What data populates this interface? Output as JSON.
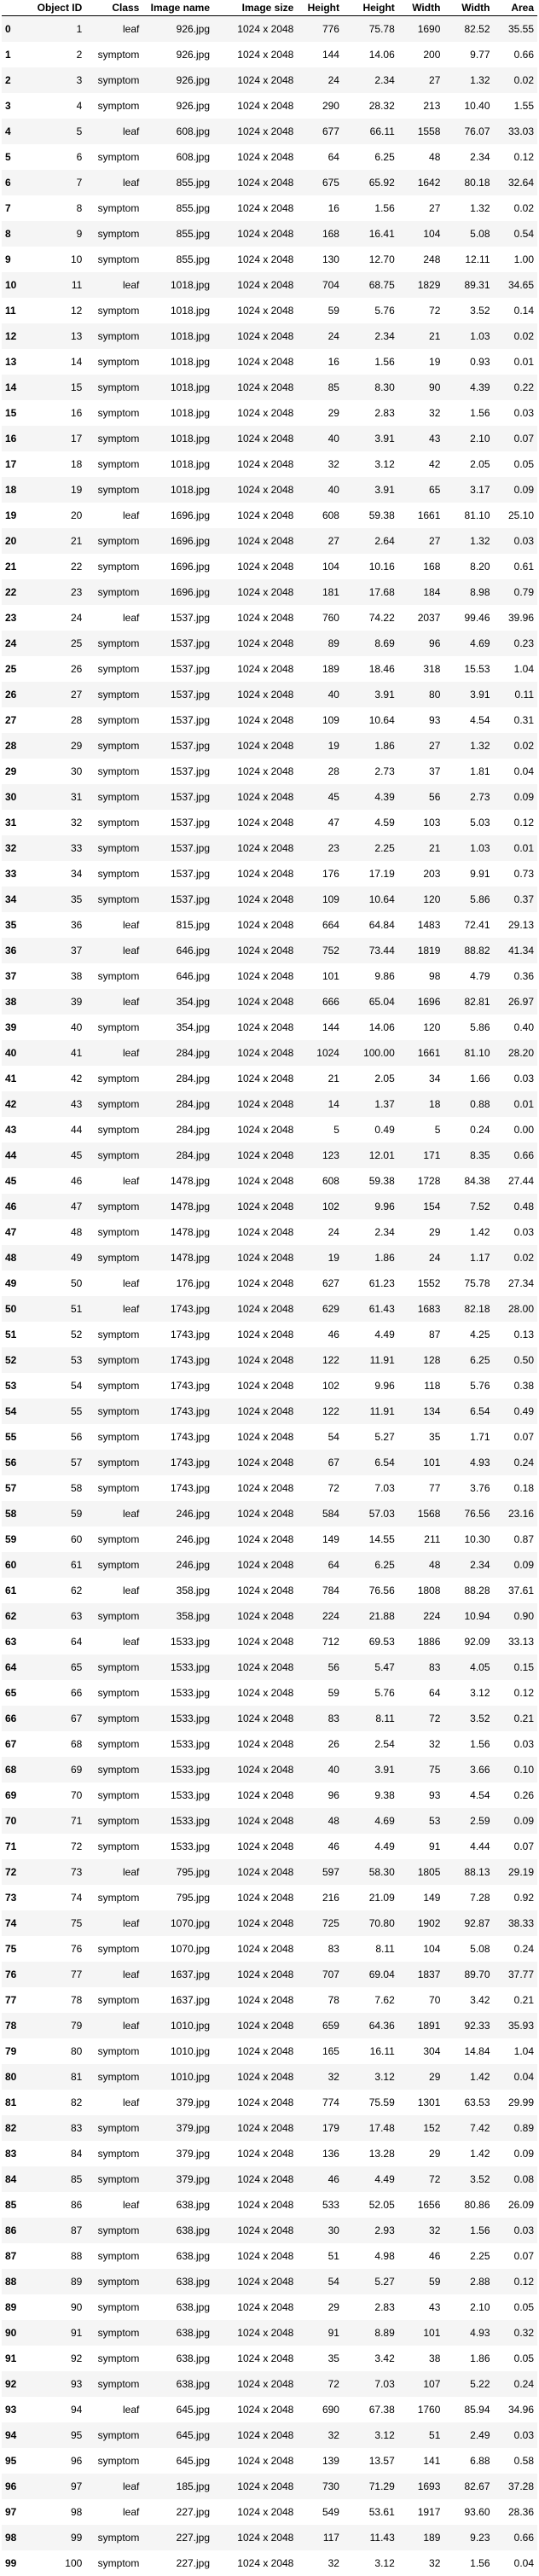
{
  "columns": [
    "Object ID",
    "Class",
    "Image name",
    "Image size",
    "Height",
    "Width",
    "Area"
  ],
  "raw_columns": [
    "Object ID",
    "Class",
    "Image name",
    "Image size",
    "Height",
    "Height",
    "Width",
    "Width",
    "Area"
  ],
  "header": {
    "index": "",
    "object_id": "Object ID",
    "class": "Class",
    "image_name": "Image name",
    "image_size": "Image size",
    "height_px": "Height",
    "height_pct": "Height",
    "width_px": "Width",
    "width_pct": "Width",
    "area": "Area"
  },
  "rows": [
    [
      "0",
      "1",
      "leaf",
      "926.jpg",
      "1024 x 2048",
      "776",
      "75.78",
      "1690",
      "82.52",
      "35.55"
    ],
    [
      "1",
      "2",
      "symptom",
      "926.jpg",
      "1024 x 2048",
      "144",
      "14.06",
      "200",
      "9.77",
      "0.66"
    ],
    [
      "2",
      "3",
      "symptom",
      "926.jpg",
      "1024 x 2048",
      "24",
      "2.34",
      "27",
      "1.32",
      "0.02"
    ],
    [
      "3",
      "4",
      "symptom",
      "926.jpg",
      "1024 x 2048",
      "290",
      "28.32",
      "213",
      "10.40",
      "1.55"
    ],
    [
      "4",
      "5",
      "leaf",
      "608.jpg",
      "1024 x 2048",
      "677",
      "66.11",
      "1558",
      "76.07",
      "33.03"
    ],
    [
      "5",
      "6",
      "symptom",
      "608.jpg",
      "1024 x 2048",
      "64",
      "6.25",
      "48",
      "2.34",
      "0.12"
    ],
    [
      "6",
      "7",
      "leaf",
      "855.jpg",
      "1024 x 2048",
      "675",
      "65.92",
      "1642",
      "80.18",
      "32.64"
    ],
    [
      "7",
      "8",
      "symptom",
      "855.jpg",
      "1024 x 2048",
      "16",
      "1.56",
      "27",
      "1.32",
      "0.02"
    ],
    [
      "8",
      "9",
      "symptom",
      "855.jpg",
      "1024 x 2048",
      "168",
      "16.41",
      "104",
      "5.08",
      "0.54"
    ],
    [
      "9",
      "10",
      "symptom",
      "855.jpg",
      "1024 x 2048",
      "130",
      "12.70",
      "248",
      "12.11",
      "1.00"
    ],
    [
      "10",
      "11",
      "leaf",
      "1018.jpg",
      "1024 x 2048",
      "704",
      "68.75",
      "1829",
      "89.31",
      "34.65"
    ],
    [
      "11",
      "12",
      "symptom",
      "1018.jpg",
      "1024 x 2048",
      "59",
      "5.76",
      "72",
      "3.52",
      "0.14"
    ],
    [
      "12",
      "13",
      "symptom",
      "1018.jpg",
      "1024 x 2048",
      "24",
      "2.34",
      "21",
      "1.03",
      "0.02"
    ],
    [
      "13",
      "14",
      "symptom",
      "1018.jpg",
      "1024 x 2048",
      "16",
      "1.56",
      "19",
      "0.93",
      "0.01"
    ],
    [
      "14",
      "15",
      "symptom",
      "1018.jpg",
      "1024 x 2048",
      "85",
      "8.30",
      "90",
      "4.39",
      "0.22"
    ],
    [
      "15",
      "16",
      "symptom",
      "1018.jpg",
      "1024 x 2048",
      "29",
      "2.83",
      "32",
      "1.56",
      "0.03"
    ],
    [
      "16",
      "17",
      "symptom",
      "1018.jpg",
      "1024 x 2048",
      "40",
      "3.91",
      "43",
      "2.10",
      "0.07"
    ],
    [
      "17",
      "18",
      "symptom",
      "1018.jpg",
      "1024 x 2048",
      "32",
      "3.12",
      "42",
      "2.05",
      "0.05"
    ],
    [
      "18",
      "19",
      "symptom",
      "1018.jpg",
      "1024 x 2048",
      "40",
      "3.91",
      "65",
      "3.17",
      "0.09"
    ],
    [
      "19",
      "20",
      "leaf",
      "1696.jpg",
      "1024 x 2048",
      "608",
      "59.38",
      "1661",
      "81.10",
      "25.10"
    ],
    [
      "20",
      "21",
      "symptom",
      "1696.jpg",
      "1024 x 2048",
      "27",
      "2.64",
      "27",
      "1.32",
      "0.03"
    ],
    [
      "21",
      "22",
      "symptom",
      "1696.jpg",
      "1024 x 2048",
      "104",
      "10.16",
      "168",
      "8.20",
      "0.61"
    ],
    [
      "22",
      "23",
      "symptom",
      "1696.jpg",
      "1024 x 2048",
      "181",
      "17.68",
      "184",
      "8.98",
      "0.79"
    ],
    [
      "23",
      "24",
      "leaf",
      "1537.jpg",
      "1024 x 2048",
      "760",
      "74.22",
      "2037",
      "99.46",
      "39.96"
    ],
    [
      "24",
      "25",
      "symptom",
      "1537.jpg",
      "1024 x 2048",
      "89",
      "8.69",
      "96",
      "4.69",
      "0.23"
    ],
    [
      "25",
      "26",
      "symptom",
      "1537.jpg",
      "1024 x 2048",
      "189",
      "18.46",
      "318",
      "15.53",
      "1.04"
    ],
    [
      "26",
      "27",
      "symptom",
      "1537.jpg",
      "1024 x 2048",
      "40",
      "3.91",
      "80",
      "3.91",
      "0.11"
    ],
    [
      "27",
      "28",
      "symptom",
      "1537.jpg",
      "1024 x 2048",
      "109",
      "10.64",
      "93",
      "4.54",
      "0.31"
    ],
    [
      "28",
      "29",
      "symptom",
      "1537.jpg",
      "1024 x 2048",
      "19",
      "1.86",
      "27",
      "1.32",
      "0.02"
    ],
    [
      "29",
      "30",
      "symptom",
      "1537.jpg",
      "1024 x 2048",
      "28",
      "2.73",
      "37",
      "1.81",
      "0.04"
    ],
    [
      "30",
      "31",
      "symptom",
      "1537.jpg",
      "1024 x 2048",
      "45",
      "4.39",
      "56",
      "2.73",
      "0.09"
    ],
    [
      "31",
      "32",
      "symptom",
      "1537.jpg",
      "1024 x 2048",
      "47",
      "4.59",
      "103",
      "5.03",
      "0.12"
    ],
    [
      "32",
      "33",
      "symptom",
      "1537.jpg",
      "1024 x 2048",
      "23",
      "2.25",
      "21",
      "1.03",
      "0.01"
    ],
    [
      "33",
      "34",
      "symptom",
      "1537.jpg",
      "1024 x 2048",
      "176",
      "17.19",
      "203",
      "9.91",
      "0.73"
    ],
    [
      "34",
      "35",
      "symptom",
      "1537.jpg",
      "1024 x 2048",
      "109",
      "10.64",
      "120",
      "5.86",
      "0.37"
    ],
    [
      "35",
      "36",
      "leaf",
      "815.jpg",
      "1024 x 2048",
      "664",
      "64.84",
      "1483",
      "72.41",
      "29.13"
    ],
    [
      "36",
      "37",
      "leaf",
      "646.jpg",
      "1024 x 2048",
      "752",
      "73.44",
      "1819",
      "88.82",
      "41.34"
    ],
    [
      "37",
      "38",
      "symptom",
      "646.jpg",
      "1024 x 2048",
      "101",
      "9.86",
      "98",
      "4.79",
      "0.36"
    ],
    [
      "38",
      "39",
      "leaf",
      "354.jpg",
      "1024 x 2048",
      "666",
      "65.04",
      "1696",
      "82.81",
      "26.97"
    ],
    [
      "39",
      "40",
      "symptom",
      "354.jpg",
      "1024 x 2048",
      "144",
      "14.06",
      "120",
      "5.86",
      "0.40"
    ],
    [
      "40",
      "41",
      "leaf",
      "284.jpg",
      "1024 x 2048",
      "1024",
      "100.00",
      "1661",
      "81.10",
      "28.20"
    ],
    [
      "41",
      "42",
      "symptom",
      "284.jpg",
      "1024 x 2048",
      "21",
      "2.05",
      "34",
      "1.66",
      "0.03"
    ],
    [
      "42",
      "43",
      "symptom",
      "284.jpg",
      "1024 x 2048",
      "14",
      "1.37",
      "18",
      "0.88",
      "0.01"
    ],
    [
      "43",
      "44",
      "symptom",
      "284.jpg",
      "1024 x 2048",
      "5",
      "0.49",
      "5",
      "0.24",
      "0.00"
    ],
    [
      "44",
      "45",
      "symptom",
      "284.jpg",
      "1024 x 2048",
      "123",
      "12.01",
      "171",
      "8.35",
      "0.66"
    ],
    [
      "45",
      "46",
      "leaf",
      "1478.jpg",
      "1024 x 2048",
      "608",
      "59.38",
      "1728",
      "84.38",
      "27.44"
    ],
    [
      "46",
      "47",
      "symptom",
      "1478.jpg",
      "1024 x 2048",
      "102",
      "9.96",
      "154",
      "7.52",
      "0.48"
    ],
    [
      "47",
      "48",
      "symptom",
      "1478.jpg",
      "1024 x 2048",
      "24",
      "2.34",
      "29",
      "1.42",
      "0.03"
    ],
    [
      "48",
      "49",
      "symptom",
      "1478.jpg",
      "1024 x 2048",
      "19",
      "1.86",
      "24",
      "1.17",
      "0.02"
    ],
    [
      "49",
      "50",
      "leaf",
      "176.jpg",
      "1024 x 2048",
      "627",
      "61.23",
      "1552",
      "75.78",
      "27.34"
    ],
    [
      "50",
      "51",
      "leaf",
      "1743.jpg",
      "1024 x 2048",
      "629",
      "61.43",
      "1683",
      "82.18",
      "28.00"
    ],
    [
      "51",
      "52",
      "symptom",
      "1743.jpg",
      "1024 x 2048",
      "46",
      "4.49",
      "87",
      "4.25",
      "0.13"
    ],
    [
      "52",
      "53",
      "symptom",
      "1743.jpg",
      "1024 x 2048",
      "122",
      "11.91",
      "128",
      "6.25",
      "0.50"
    ],
    [
      "53",
      "54",
      "symptom",
      "1743.jpg",
      "1024 x 2048",
      "102",
      "9.96",
      "118",
      "5.76",
      "0.38"
    ],
    [
      "54",
      "55",
      "symptom",
      "1743.jpg",
      "1024 x 2048",
      "122",
      "11.91",
      "134",
      "6.54",
      "0.49"
    ],
    [
      "55",
      "56",
      "symptom",
      "1743.jpg",
      "1024 x 2048",
      "54",
      "5.27",
      "35",
      "1.71",
      "0.07"
    ],
    [
      "56",
      "57",
      "symptom",
      "1743.jpg",
      "1024 x 2048",
      "67",
      "6.54",
      "101",
      "4.93",
      "0.24"
    ],
    [
      "57",
      "58",
      "symptom",
      "1743.jpg",
      "1024 x 2048",
      "72",
      "7.03",
      "77",
      "3.76",
      "0.18"
    ],
    [
      "58",
      "59",
      "leaf",
      "246.jpg",
      "1024 x 2048",
      "584",
      "57.03",
      "1568",
      "76.56",
      "23.16"
    ],
    [
      "59",
      "60",
      "symptom",
      "246.jpg",
      "1024 x 2048",
      "149",
      "14.55",
      "211",
      "10.30",
      "0.87"
    ],
    [
      "60",
      "61",
      "symptom",
      "246.jpg",
      "1024 x 2048",
      "64",
      "6.25",
      "48",
      "2.34",
      "0.09"
    ],
    [
      "61",
      "62",
      "leaf",
      "358.jpg",
      "1024 x 2048",
      "784",
      "76.56",
      "1808",
      "88.28",
      "37.61"
    ],
    [
      "62",
      "63",
      "symptom",
      "358.jpg",
      "1024 x 2048",
      "224",
      "21.88",
      "224",
      "10.94",
      "0.90"
    ],
    [
      "63",
      "64",
      "leaf",
      "1533.jpg",
      "1024 x 2048",
      "712",
      "69.53",
      "1886",
      "92.09",
      "33.13"
    ],
    [
      "64",
      "65",
      "symptom",
      "1533.jpg",
      "1024 x 2048",
      "56",
      "5.47",
      "83",
      "4.05",
      "0.15"
    ],
    [
      "65",
      "66",
      "symptom",
      "1533.jpg",
      "1024 x 2048",
      "59",
      "5.76",
      "64",
      "3.12",
      "0.12"
    ],
    [
      "66",
      "67",
      "symptom",
      "1533.jpg",
      "1024 x 2048",
      "83",
      "8.11",
      "72",
      "3.52",
      "0.21"
    ],
    [
      "67",
      "68",
      "symptom",
      "1533.jpg",
      "1024 x 2048",
      "26",
      "2.54",
      "32",
      "1.56",
      "0.03"
    ],
    [
      "68",
      "69",
      "symptom",
      "1533.jpg",
      "1024 x 2048",
      "40",
      "3.91",
      "75",
      "3.66",
      "0.10"
    ],
    [
      "69",
      "70",
      "symptom",
      "1533.jpg",
      "1024 x 2048",
      "96",
      "9.38",
      "93",
      "4.54",
      "0.26"
    ],
    [
      "70",
      "71",
      "symptom",
      "1533.jpg",
      "1024 x 2048",
      "48",
      "4.69",
      "53",
      "2.59",
      "0.09"
    ],
    [
      "71",
      "72",
      "symptom",
      "1533.jpg",
      "1024 x 2048",
      "46",
      "4.49",
      "91",
      "4.44",
      "0.07"
    ],
    [
      "72",
      "73",
      "leaf",
      "795.jpg",
      "1024 x 2048",
      "597",
      "58.30",
      "1805",
      "88.13",
      "29.19"
    ],
    [
      "73",
      "74",
      "symptom",
      "795.jpg",
      "1024 x 2048",
      "216",
      "21.09",
      "149",
      "7.28",
      "0.92"
    ],
    [
      "74",
      "75",
      "leaf",
      "1070.jpg",
      "1024 x 2048",
      "725",
      "70.80",
      "1902",
      "92.87",
      "38.33"
    ],
    [
      "75",
      "76",
      "symptom",
      "1070.jpg",
      "1024 x 2048",
      "83",
      "8.11",
      "104",
      "5.08",
      "0.24"
    ],
    [
      "76",
      "77",
      "leaf",
      "1637.jpg",
      "1024 x 2048",
      "707",
      "69.04",
      "1837",
      "89.70",
      "37.77"
    ],
    [
      "77",
      "78",
      "symptom",
      "1637.jpg",
      "1024 x 2048",
      "78",
      "7.62",
      "70",
      "3.42",
      "0.21"
    ],
    [
      "78",
      "79",
      "leaf",
      "1010.jpg",
      "1024 x 2048",
      "659",
      "64.36",
      "1891",
      "92.33",
      "35.93"
    ],
    [
      "79",
      "80",
      "symptom",
      "1010.jpg",
      "1024 x 2048",
      "165",
      "16.11",
      "304",
      "14.84",
      "1.04"
    ],
    [
      "80",
      "81",
      "symptom",
      "1010.jpg",
      "1024 x 2048",
      "32",
      "3.12",
      "29",
      "1.42",
      "0.04"
    ],
    [
      "81",
      "82",
      "leaf",
      "379.jpg",
      "1024 x 2048",
      "774",
      "75.59",
      "1301",
      "63.53",
      "29.99"
    ],
    [
      "82",
      "83",
      "symptom",
      "379.jpg",
      "1024 x 2048",
      "179",
      "17.48",
      "152",
      "7.42",
      "0.89"
    ],
    [
      "83",
      "84",
      "symptom",
      "379.jpg",
      "1024 x 2048",
      "136",
      "13.28",
      "29",
      "1.42",
      "0.09"
    ],
    [
      "84",
      "85",
      "symptom",
      "379.jpg",
      "1024 x 2048",
      "46",
      "4.49",
      "72",
      "3.52",
      "0.08"
    ],
    [
      "85",
      "86",
      "leaf",
      "638.jpg",
      "1024 x 2048",
      "533",
      "52.05",
      "1656",
      "80.86",
      "26.09"
    ],
    [
      "86",
      "87",
      "symptom",
      "638.jpg",
      "1024 x 2048",
      "30",
      "2.93",
      "32",
      "1.56",
      "0.03"
    ],
    [
      "87",
      "88",
      "symptom",
      "638.jpg",
      "1024 x 2048",
      "51",
      "4.98",
      "46",
      "2.25",
      "0.07"
    ],
    [
      "88",
      "89",
      "symptom",
      "638.jpg",
      "1024 x 2048",
      "54",
      "5.27",
      "59",
      "2.88",
      "0.12"
    ],
    [
      "89",
      "90",
      "symptom",
      "638.jpg",
      "1024 x 2048",
      "29",
      "2.83",
      "43",
      "2.10",
      "0.05"
    ],
    [
      "90",
      "91",
      "symptom",
      "638.jpg",
      "1024 x 2048",
      "91",
      "8.89",
      "101",
      "4.93",
      "0.32"
    ],
    [
      "91",
      "92",
      "symptom",
      "638.jpg",
      "1024 x 2048",
      "35",
      "3.42",
      "38",
      "1.86",
      "0.05"
    ],
    [
      "92",
      "93",
      "symptom",
      "638.jpg",
      "1024 x 2048",
      "72",
      "7.03",
      "107",
      "5.22",
      "0.24"
    ],
    [
      "93",
      "94",
      "leaf",
      "645.jpg",
      "1024 x 2048",
      "690",
      "67.38",
      "1760",
      "85.94",
      "34.96"
    ],
    [
      "94",
      "95",
      "symptom",
      "645.jpg",
      "1024 x 2048",
      "32",
      "3.12",
      "51",
      "2.49",
      "0.03"
    ],
    [
      "95",
      "96",
      "symptom",
      "645.jpg",
      "1024 x 2048",
      "139",
      "13.57",
      "141",
      "6.88",
      "0.58"
    ],
    [
      "96",
      "97",
      "leaf",
      "185.jpg",
      "1024 x 2048",
      "730",
      "71.29",
      "1693",
      "82.67",
      "37.28"
    ],
    [
      "97",
      "98",
      "leaf",
      "227.jpg",
      "1024 x 2048",
      "549",
      "53.61",
      "1917",
      "93.60",
      "28.36"
    ],
    [
      "98",
      "99",
      "symptom",
      "227.jpg",
      "1024 x 2048",
      "117",
      "11.43",
      "189",
      "9.23",
      "0.66"
    ],
    [
      "99",
      "100",
      "symptom",
      "227.jpg",
      "1024 x 2048",
      "32",
      "3.12",
      "32",
      "1.56",
      "0.04"
    ]
  ]
}
